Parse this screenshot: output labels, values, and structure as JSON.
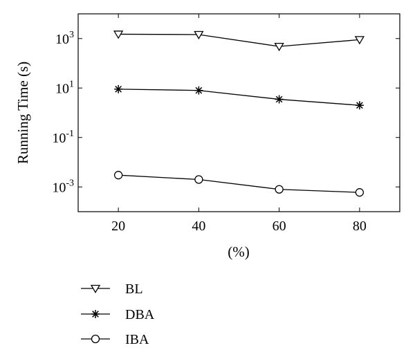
{
  "chart_data": {
    "type": "line",
    "title": "",
    "xlabel": "(%)",
    "ylabel": "Running Time (s)",
    "x": [
      20,
      40,
      60,
      80
    ],
    "x_ticks": [
      "20",
      "40",
      "60",
      "80"
    ],
    "xlim": [
      10,
      90
    ],
    "y_scale": "log",
    "ylim": [
      0.0001,
      10000
    ],
    "y_ticks": [
      {
        "value": 1000,
        "base": "10",
        "exp": "3"
      },
      {
        "value": 10,
        "base": "10",
        "exp": "1"
      },
      {
        "value": 0.1,
        "base": "10",
        "exp": "-1"
      },
      {
        "value": 0.001,
        "base": "10",
        "exp": "-3"
      }
    ],
    "grid": false,
    "legend_position": "below",
    "series": [
      {
        "name": "BL",
        "marker": "triangle-down",
        "values": [
          1500,
          1450,
          480,
          900
        ]
      },
      {
        "name": "DBA",
        "marker": "asterisk",
        "values": [
          9,
          8,
          3.5,
          2
        ]
      },
      {
        "name": "IBA",
        "marker": "circle",
        "values": [
          0.003,
          0.002,
          0.0008,
          0.0006
        ]
      }
    ],
    "colors": {
      "line": "#000000",
      "background": "#ffffff"
    }
  }
}
